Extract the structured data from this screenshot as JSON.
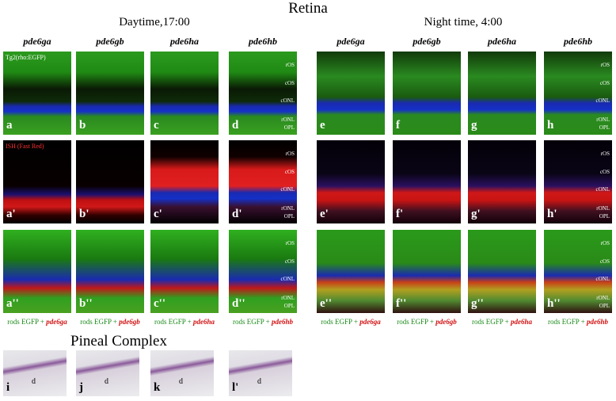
{
  "title": "Retina",
  "groups": [
    {
      "label": "Daytime,17:00",
      "columns": [
        "pde6ga",
        "pde6gb",
        "pde6ha",
        "pde6hb"
      ]
    },
    {
      "label": "Night time, 4:00",
      "columns": [
        "pde6ga",
        "pde6gb",
        "pde6ha",
        "pde6hb"
      ]
    }
  ],
  "row_labels": [
    "Tg2(rho:EGFP)",
    "ISH (Fast Red)"
  ],
  "panels": [
    [
      "a",
      "b",
      "c",
      "d",
      "e",
      "f",
      "g",
      "h"
    ],
    [
      "a'",
      "b'",
      "c'",
      "d'",
      "e'",
      "f'",
      "g'",
      "h'"
    ],
    [
      "a''",
      "b''",
      "c''",
      "d''",
      "e''",
      "f''",
      "g''",
      "h''"
    ]
  ],
  "layer_labels": [
    "rOS",
    "cOS",
    "cONL",
    "rONL",
    "OPL"
  ],
  "caption_prefix": "rods EGFP +",
  "pineal": {
    "title": "Pineal Complex",
    "panels": [
      "i",
      "j",
      "k",
      "l'"
    ],
    "label": "d"
  }
}
